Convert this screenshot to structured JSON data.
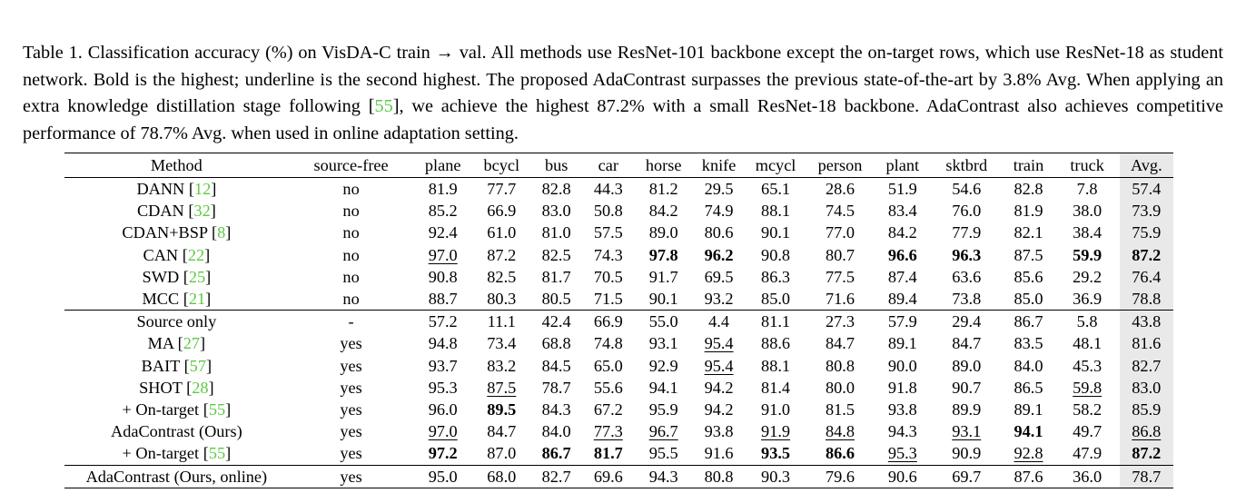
{
  "caption": {
    "seg1": "Table 1. Classification accuracy (%) on VisDA-C train → val. All methods use ResNet-101 backbone except the on-target rows, which use ResNet-18 as student network. Bold is the highest; underline is the second highest. The proposed AdaContrast surpasses the previous state-of-the-art by 3.8% Avg. When applying an extra knowledge distillation stage following [",
    "cite": "55",
    "seg2": "], we achieve the highest 87.2% with a small ResNet-18 backbone. AdaContrast also achieves competitive performance of 78.7% Avg. when used in online adaptation setting."
  },
  "table": {
    "headers": [
      "Method",
      "source-free",
      "plane",
      "bcycl",
      "bus",
      "car",
      "horse",
      "knife",
      "mcycl",
      "person",
      "plant",
      "sktbrd",
      "train",
      "truck",
      "Avg."
    ],
    "groups": [
      [
        {
          "method": "DANN",
          "cite": "12",
          "cells": [
            "no",
            "81.9",
            "77.7",
            "82.8",
            "44.3",
            "81.2",
            "29.5",
            "65.1",
            "28.6",
            "51.9",
            "54.6",
            "82.8",
            "7.8",
            "57.4"
          ]
        },
        {
          "method": "CDAN",
          "cite": "32",
          "cells": [
            "no",
            "85.2",
            "66.9",
            "83.0",
            "50.8",
            "84.2",
            "74.9",
            "88.1",
            "74.5",
            "83.4",
            "76.0",
            "81.9",
            "38.0",
            "73.9"
          ]
        },
        {
          "method": "CDAN+BSP",
          "cite": "8",
          "cells": [
            "no",
            "92.4",
            "61.0",
            "81.0",
            "57.5",
            "89.0",
            "80.6",
            "90.1",
            "77.0",
            "84.2",
            "77.9",
            "82.1",
            "38.4",
            "75.9"
          ]
        },
        {
          "method": "CAN",
          "cite": "22",
          "cells": [
            "no",
            "97.0",
            "87.2",
            "82.5",
            "74.3",
            "97.8",
            "96.2",
            "90.8",
            "80.7",
            "96.6",
            "96.3",
            "87.5",
            "59.9",
            "87.2"
          ],
          "bold": [
            5,
            6,
            9,
            10,
            12,
            13
          ],
          "underline": [
            1
          ]
        },
        {
          "method": "SWD",
          "cite": "25",
          "cells": [
            "no",
            "90.8",
            "82.5",
            "81.7",
            "70.5",
            "91.7",
            "69.5",
            "86.3",
            "77.5",
            "87.4",
            "63.6",
            "85.6",
            "29.2",
            "76.4"
          ]
        },
        {
          "method": "MCC",
          "cite": "21",
          "cells": [
            "no",
            "88.7",
            "80.3",
            "80.5",
            "71.5",
            "90.1",
            "93.2",
            "85.0",
            "71.6",
            "89.4",
            "73.8",
            "85.0",
            "36.9",
            "78.8"
          ]
        }
      ],
      [
        {
          "method": "Source only",
          "cells": [
            "-",
            "57.2",
            "11.1",
            "42.4",
            "66.9",
            "55.0",
            "4.4",
            "81.1",
            "27.3",
            "57.9",
            "29.4",
            "86.7",
            "5.8",
            "43.8"
          ]
        },
        {
          "method": "MA",
          "cite": "27",
          "cells": [
            "yes",
            "94.8",
            "73.4",
            "68.8",
            "74.8",
            "93.1",
            "95.4",
            "88.6",
            "84.7",
            "89.1",
            "84.7",
            "83.5",
            "48.1",
            "81.6"
          ],
          "underline": [
            6
          ]
        },
        {
          "method": "BAIT",
          "cite": "57",
          "cells": [
            "yes",
            "93.7",
            "83.2",
            "84.5",
            "65.0",
            "92.9",
            "95.4",
            "88.1",
            "80.8",
            "90.0",
            "89.0",
            "84.0",
            "45.3",
            "82.7"
          ],
          "underline": [
            6
          ]
        },
        {
          "method": "SHOT",
          "cite": "28",
          "cells": [
            "yes",
            "95.3",
            "87.5",
            "78.7",
            "55.6",
            "94.1",
            "94.2",
            "81.4",
            "80.0",
            "91.8",
            "90.7",
            "86.5",
            "59.8",
            "83.0"
          ],
          "underline": [
            2,
            12
          ]
        },
        {
          "method": "+ On-target",
          "cite": "55",
          "cells": [
            "yes",
            "96.0",
            "89.5",
            "84.3",
            "67.2",
            "95.9",
            "94.2",
            "91.0",
            "81.5",
            "93.8",
            "89.9",
            "89.1",
            "58.2",
            "85.9"
          ],
          "bold": [
            2
          ]
        },
        {
          "method": "AdaContrast (Ours)",
          "cells": [
            "yes",
            "97.0",
            "84.7",
            "84.0",
            "77.3",
            "96.7",
            "93.8",
            "91.9",
            "84.8",
            "94.3",
            "93.1",
            "94.1",
            "49.7",
            "86.8"
          ],
          "bold": [
            11
          ],
          "underline": [
            1,
            4,
            5,
            7,
            8,
            10,
            13
          ]
        },
        {
          "method": "+ On-target",
          "cite": "55",
          "cells": [
            "yes",
            "97.2",
            "87.0",
            "86.7",
            "81.7",
            "95.5",
            "91.6",
            "93.5",
            "86.6",
            "95.3",
            "90.9",
            "92.8",
            "47.9",
            "87.2"
          ],
          "bold": [
            1,
            3,
            4,
            7,
            8,
            13
          ],
          "underline": [
            9,
            11
          ]
        }
      ],
      [
        {
          "method": "AdaContrast (Ours, online)",
          "cells": [
            "yes",
            "95.0",
            "68.0",
            "82.7",
            "69.6",
            "94.3",
            "80.8",
            "90.3",
            "79.6",
            "90.6",
            "69.7",
            "87.6",
            "36.0",
            "78.7"
          ]
        }
      ]
    ]
  }
}
